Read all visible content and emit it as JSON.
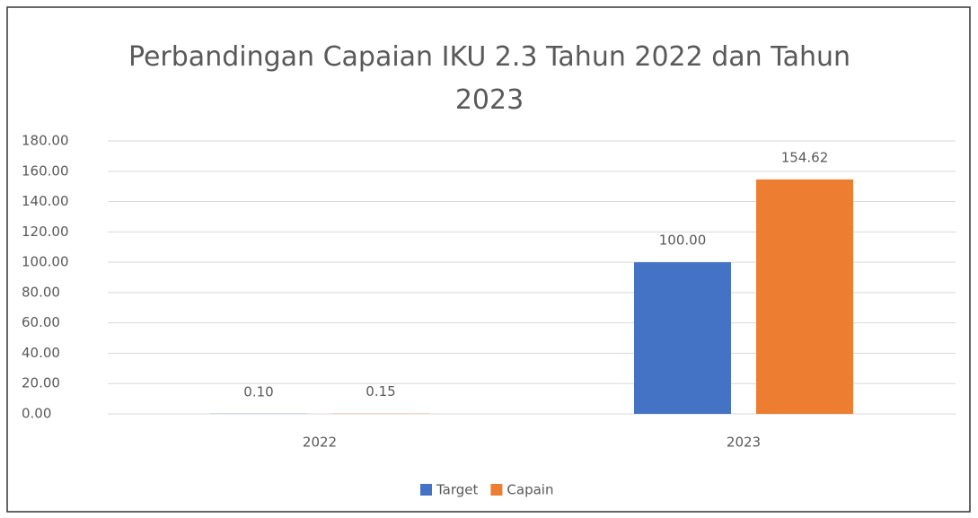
{
  "chart_data": {
    "type": "bar",
    "title": "Perbandingan Capaian IKU 2.3 Tahun 2022 dan Tahun 2023",
    "categories": [
      "2022",
      "2023"
    ],
    "series": [
      {
        "name": "Target",
        "color": "#4472c4",
        "values": [
          0.1,
          100
        ],
        "value_labels": [
          "0.10",
          "100.00"
        ]
      },
      {
        "name": "Capain",
        "color": "#ed7d31",
        "values": [
          0.15,
          154.62
        ],
        "value_labels": [
          "0.15",
          "154.62"
        ]
      }
    ],
    "ylim": [
      0,
      180
    ],
    "yticks": [
      {
        "value": 0,
        "label": "0.00"
      },
      {
        "value": 20,
        "label": "20.00"
      },
      {
        "value": 40,
        "label": "40.00"
      },
      {
        "value": 60,
        "label": "60.00"
      },
      {
        "value": 80,
        "label": "80.00"
      },
      {
        "value": 100,
        "label": "100.00"
      },
      {
        "value": 120,
        "label": "120.00"
      },
      {
        "value": 140,
        "label": "140.00"
      },
      {
        "value": 160,
        "label": "160.00"
      },
      {
        "value": 180,
        "label": "180.00"
      }
    ],
    "grid": true,
    "legend": "bottom"
  }
}
